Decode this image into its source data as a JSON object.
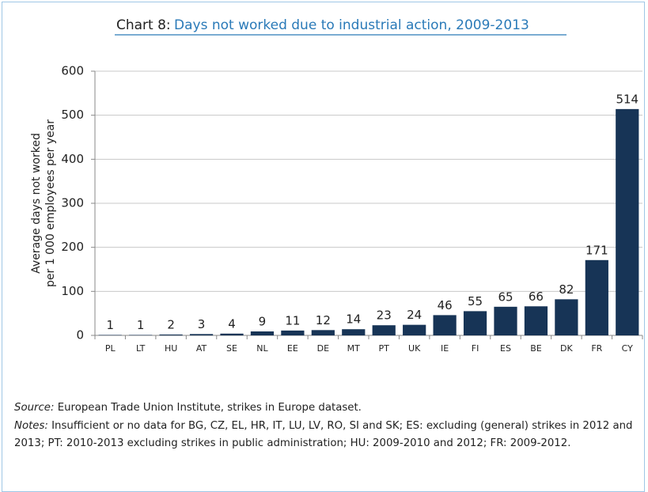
{
  "chart_data": {
    "type": "bar",
    "chart_label": "Chart 8:",
    "title": "Days not worked due to industrial action, 2009-2013",
    "ylabel": [
      "Average days not worked",
      "per 1 000 employees per year"
    ],
    "categories": [
      "PL",
      "LT",
      "HU",
      "AT",
      "SE",
      "NL",
      "EE",
      "DE",
      "MT",
      "PT",
      "UK",
      "IE",
      "FI",
      "ES",
      "BE",
      "DK",
      "FR",
      "CY"
    ],
    "values": [
      1,
      1,
      2,
      3,
      4,
      9,
      11,
      12,
      14,
      23,
      24,
      46,
      55,
      65,
      66,
      82,
      171,
      514
    ],
    "color": "#173456",
    "ylim": [
      0,
      600
    ],
    "yticks": [
      0,
      100,
      200,
      300,
      400,
      500,
      600
    ],
    "grid": true,
    "source_label": "Source:",
    "source": "European Trade Union Institute, strikes in Europe dataset.",
    "notes_label": "Notes:",
    "notes": "Insufficient or no data for BG, CZ, EL, HR, IT, LU, LV, RO, SI and SK; ES: excluding (general) strikes in 2012 and 2013; PT: 2010-2013 excluding strikes in public administration; HU: 2009-2010 and 2012; FR: 2009-2012."
  }
}
